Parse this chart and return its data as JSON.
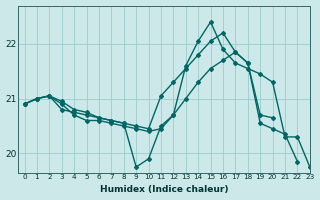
{
  "xlabel": "Humidex (Indice chaleur)",
  "ylabel": "",
  "background_color": "#cce8e8",
  "grid_color": "#99cccc",
  "line_color": "#006666",
  "xlim": [
    -0.5,
    23
  ],
  "ylim": [
    19.65,
    22.7
  ],
  "yticks": [
    20,
    21,
    22
  ],
  "xticks": [
    0,
    1,
    2,
    3,
    4,
    5,
    6,
    7,
    8,
    9,
    10,
    11,
    12,
    13,
    14,
    15,
    16,
    17,
    18,
    19,
    20,
    21,
    22,
    23
  ],
  "lines": [
    {
      "x": [
        0,
        1,
        2,
        3,
        4,
        5,
        6,
        7,
        8,
        9,
        10,
        11,
        12,
        13,
        14,
        15,
        16,
        17,
        18,
        19,
        20,
        21,
        22,
        23
      ],
      "y": [
        20.9,
        21.0,
        21.05,
        20.8,
        20.75,
        20.7,
        20.65,
        20.6,
        20.55,
        19.75,
        19.9,
        20.5,
        20.7,
        21.6,
        22.05,
        22.4,
        21.9,
        21.65,
        21.55,
        21.45,
        21.3,
        20.3,
        20.3,
        19.75
      ]
    },
    {
      "x": [
        0,
        1,
        2,
        3,
        4,
        5,
        6,
        7,
        8,
        9,
        10,
        11,
        12,
        13,
        14,
        15,
        16,
        17,
        18,
        19,
        20,
        21,
        22
      ],
      "y": [
        20.9,
        21.0,
        21.05,
        20.95,
        20.8,
        20.75,
        20.65,
        20.6,
        20.55,
        20.5,
        20.45,
        21.05,
        21.3,
        21.55,
        21.8,
        22.05,
        22.2,
        21.85,
        21.65,
        20.55,
        20.45,
        20.35,
        19.85
      ]
    },
    {
      "x": [
        0,
        1,
        2,
        3,
        4,
        5,
        6,
        7,
        8,
        9,
        10,
        11,
        12,
        13,
        14,
        15,
        16,
        17,
        18,
        19,
        20
      ],
      "y": [
        20.9,
        21.0,
        21.05,
        20.9,
        20.7,
        20.6,
        20.6,
        20.55,
        20.5,
        20.45,
        20.4,
        20.45,
        20.7,
        21.0,
        21.3,
        21.55,
        21.7,
        21.85,
        21.65,
        20.7,
        20.65
      ]
    }
  ],
  "marker": "D",
  "marker_size": 2.0,
  "linewidth": 1.0
}
